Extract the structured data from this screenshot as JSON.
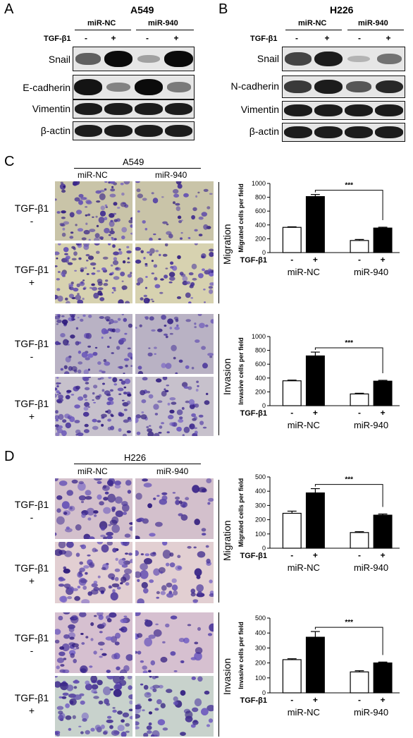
{
  "panelA": {
    "letter": "A",
    "cell_line": "A549",
    "groups": [
      "miR-NC",
      "miR-940"
    ],
    "tgf_label": "TGF-β1",
    "treatment_signs": [
      "-",
      "+",
      "-",
      "+"
    ],
    "proteins": [
      "Snail",
      "E-cadherin",
      "Vimentin",
      "β-actin"
    ],
    "band_intensity": [
      [
        0.55,
        1.0,
        0.2,
        1.0
      ],
      [
        0.95,
        0.35,
        1.0,
        0.4
      ],
      [
        0.9,
        0.9,
        0.9,
        0.9
      ],
      [
        0.9,
        0.9,
        0.9,
        0.9
      ]
    ]
  },
  "panelB": {
    "letter": "B",
    "cell_line": "H226",
    "groups": [
      "miR-NC",
      "miR-940"
    ],
    "tgf_label": "TGF-β1",
    "treatment_signs": [
      "-",
      "+",
      "-",
      "+"
    ],
    "proteins": [
      "Snail",
      "N-cadherin",
      "Vimentin",
      "β-actin"
    ],
    "band_intensity": [
      [
        0.7,
        0.9,
        0.1,
        0.45
      ],
      [
        0.75,
        0.9,
        0.6,
        0.85
      ],
      [
        0.9,
        0.9,
        0.9,
        0.9
      ],
      [
        0.9,
        0.9,
        0.9,
        0.9
      ]
    ]
  },
  "panelC": {
    "letter": "C",
    "cell_line": "A549",
    "groups": [
      "miR-NC",
      "miR-940"
    ],
    "row_labels": [
      {
        "line1": "TGF-β1",
        "line2": "-"
      },
      {
        "line1": "TGF-β1",
        "line2": "+"
      },
      {
        "line1": "TGF-β1",
        "line2": "-"
      },
      {
        "line1": "TGF-β1",
        "line2": "+"
      }
    ],
    "side_labels": [
      "Migration",
      "Invasion"
    ],
    "image_colors": [
      "#c9c4a8",
      "#d7d2b0",
      "#b9b2c4",
      "#c7c1cc"
    ]
  },
  "panelD": {
    "letter": "D",
    "cell_line": "H226",
    "groups": [
      "miR-NC",
      "miR-940"
    ],
    "row_labels": [
      {
        "line1": "TGF-β1",
        "line2": "-"
      },
      {
        "line1": "TGF-β1",
        "line2": "+"
      },
      {
        "line1": "TGF-β1",
        "line2": "-"
      },
      {
        "line1": "TGF-β1",
        "line2": "+"
      }
    ],
    "side_labels": [
      "Migration",
      "Invasion"
    ],
    "image_colors": [
      "#d3c0cc",
      "#e2cfd2",
      "#d6c0d0",
      "#c8d2cc"
    ]
  },
  "chart_data": [
    {
      "type": "bar",
      "ylabel": "Migrated cells per field",
      "ylim": [
        0,
        1000
      ],
      "yticks": [
        0,
        200,
        400,
        600,
        800,
        1000
      ],
      "tgf_label": "TGF-β1",
      "treatment_signs": [
        "-",
        "+",
        "-",
        "+"
      ],
      "groups": [
        "miR-NC",
        "miR-940"
      ],
      "values": [
        365,
        810,
        175,
        355
      ],
      "errors": [
        8,
        30,
        15,
        12
      ],
      "fill": [
        "#ffffff",
        "#000000",
        "#ffffff",
        "#000000"
      ],
      "significance": "***"
    },
    {
      "type": "bar",
      "ylabel": "Invasive cells per field",
      "ylim": [
        0,
        1000
      ],
      "yticks": [
        0,
        200,
        400,
        600,
        800,
        1000
      ],
      "tgf_label": "TGF-β1",
      "treatment_signs": [
        "-",
        "+",
        "-",
        "+"
      ],
      "groups": [
        "miR-NC",
        "miR-940"
      ],
      "values": [
        360,
        720,
        170,
        355
      ],
      "errors": [
        10,
        55,
        10,
        12
      ],
      "fill": [
        "#ffffff",
        "#000000",
        "#ffffff",
        "#000000"
      ],
      "significance": "***"
    },
    {
      "type": "bar",
      "ylabel": "Migrated cells per field",
      "ylim": [
        0,
        500
      ],
      "yticks": [
        0,
        100,
        200,
        300,
        400,
        500
      ],
      "tgf_label": "TGF-β1",
      "treatment_signs": [
        "-",
        "+",
        "-",
        "+"
      ],
      "groups": [
        "miR-NC",
        "miR-940"
      ],
      "values": [
        245,
        388,
        110,
        232
      ],
      "errors": [
        15,
        30,
        6,
        8
      ],
      "fill": [
        "#ffffff",
        "#000000",
        "#ffffff",
        "#000000"
      ],
      "significance": "***"
    },
    {
      "type": "bar",
      "ylabel": "Invasive cells per field",
      "ylim": [
        0,
        500
      ],
      "yticks": [
        0,
        100,
        200,
        300,
        400,
        500
      ],
      "tgf_label": "TGF-β1",
      "treatment_signs": [
        "-",
        "+",
        "-",
        "+"
      ],
      "groups": [
        "miR-NC",
        "miR-940"
      ],
      "values": [
        222,
        372,
        140,
        200
      ],
      "errors": [
        6,
        38,
        8,
        6
      ],
      "fill": [
        "#ffffff",
        "#000000",
        "#ffffff",
        "#000000"
      ],
      "significance": "***"
    }
  ]
}
